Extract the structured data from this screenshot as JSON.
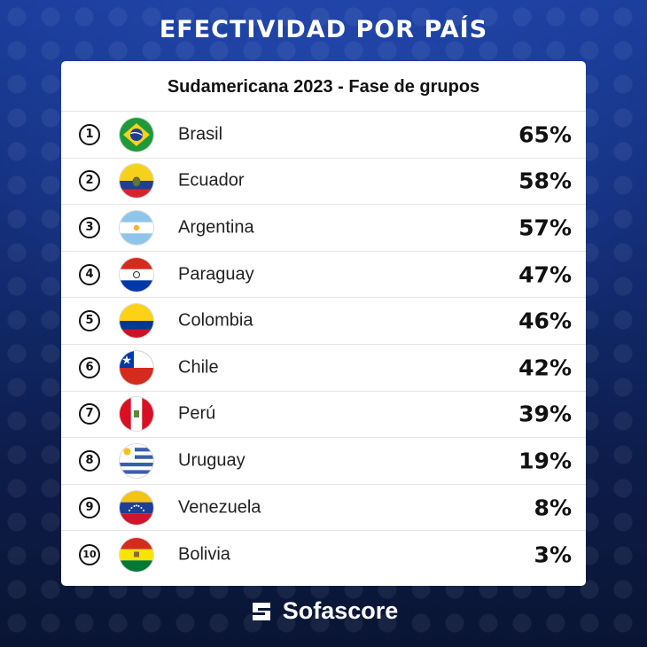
{
  "title": "EFECTIVIDAD POR PAÍS",
  "subtitle": "Sudamericana 2023 - Fase de grupos",
  "rows": [
    {
      "rank": "1",
      "country": "Brasil",
      "value": "65%",
      "flag": "brazil-flag-icon"
    },
    {
      "rank": "2",
      "country": "Ecuador",
      "value": "58%",
      "flag": "ecuador-flag-icon"
    },
    {
      "rank": "3",
      "country": "Argentina",
      "value": "57%",
      "flag": "argentina-flag-icon"
    },
    {
      "rank": "4",
      "country": "Paraguay",
      "value": "47%",
      "flag": "paraguay-flag-icon"
    },
    {
      "rank": "5",
      "country": "Colombia",
      "value": "46%",
      "flag": "colombia-flag-icon"
    },
    {
      "rank": "6",
      "country": "Chile",
      "value": "42%",
      "flag": "chile-flag-icon"
    },
    {
      "rank": "7",
      "country": "Perú",
      "value": "39%",
      "flag": "peru-flag-icon"
    },
    {
      "rank": "8",
      "country": "Uruguay",
      "value": "19%",
      "flag": "uruguay-flag-icon"
    },
    {
      "rank": "9",
      "country": "Venezuela",
      "value": "8%",
      "flag": "venezuela-flag-icon"
    },
    {
      "rank": "10",
      "country": "Bolivia",
      "value": "3%",
      "flag": "bolivia-flag-icon"
    }
  ],
  "brand": "Sofascore",
  "colors": {
    "background": "#142f7a",
    "card": "#ffffff",
    "text": "#111111"
  }
}
